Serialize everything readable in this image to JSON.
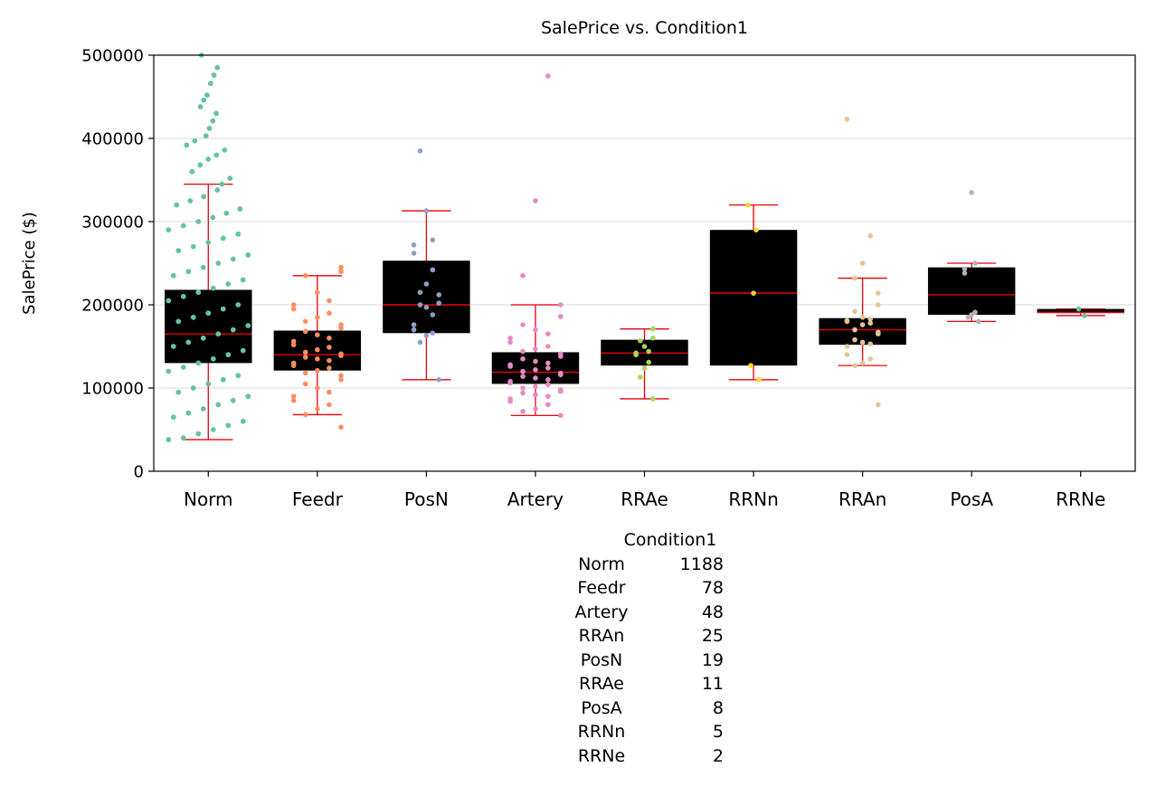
{
  "chart_data": {
    "type": "box",
    "title": "SalePrice vs. Condition1",
    "xlabel": "",
    "ylabel": "SalePrice ($)",
    "ylim": [
      0,
      500000
    ],
    "yticks": [
      0,
      100000,
      200000,
      300000,
      400000,
      500000
    ],
    "ytick_labels": [
      "0",
      "100000",
      "200000",
      "300000",
      "400000",
      "500000"
    ],
    "grid": "horizontal",
    "categories": [
      "Norm",
      "Feedr",
      "PosN",
      "Artery",
      "RRAe",
      "RRNn",
      "RRAn",
      "PosA",
      "RRNe"
    ],
    "boxes": [
      {
        "name": "Norm",
        "q1": 130000,
        "median": 165000,
        "q3": 218000,
        "whislo": 38000,
        "whishi": 345000
      },
      {
        "name": "Feedr",
        "q1": 121000,
        "median": 140000,
        "q3": 169000,
        "whislo": 68000,
        "whishi": 235000
      },
      {
        "name": "PosN",
        "q1": 166000,
        "median": 200000,
        "q3": 253000,
        "whislo": 110000,
        "whishi": 313000
      },
      {
        "name": "Artery",
        "q1": 105000,
        "median": 119000,
        "q3": 143000,
        "whislo": 67000,
        "whishi": 200000
      },
      {
        "name": "RRAe",
        "q1": 127000,
        "median": 142000,
        "q3": 158000,
        "whislo": 87000,
        "whishi": 171000
      },
      {
        "name": "RRNn",
        "q1": 127000,
        "median": 214000,
        "q3": 290000,
        "whislo": 110000,
        "whishi": 320000
      },
      {
        "name": "RRAn",
        "q1": 152000,
        "median": 170000,
        "q3": 184000,
        "whislo": 127000,
        "whishi": 232000
      },
      {
        "name": "PosA",
        "q1": 188000,
        "median": 212000,
        "q3": 245000,
        "whislo": 180000,
        "whishi": 250000
      },
      {
        "name": "RRNe",
        "q1": 190000,
        "median": 191000,
        "q3": 195000,
        "whislo": 187000,
        "whishi": 195000
      }
    ],
    "point_colors": [
      "#66c2a5",
      "#fc8d62",
      "#8da0cb",
      "#e78ac3",
      "#a6d854",
      "#ffd92f",
      "#e5c494",
      "#b3b3b3",
      "#66c2a5"
    ],
    "points": [
      {
        "name": "Norm",
        "count": 1188,
        "values": [
          500000,
          485000,
          476000,
          466000,
          452000,
          446000,
          438000,
          430000,
          421000,
          412000,
          403000,
          397000,
          392000,
          386000,
          380000,
          375000,
          368000,
          360000,
          352000,
          345000,
          338000,
          330000,
          325000,
          320000,
          315000,
          310000,
          305000,
          300000,
          295000,
          290000,
          285000,
          280000,
          275000,
          270000,
          265000,
          260000,
          255000,
          250000,
          245000,
          240000,
          235000,
          230000,
          225000,
          220000,
          215000,
          210000,
          205000,
          200000,
          195000,
          190000,
          185000,
          180000,
          175000,
          170000,
          165000,
          160000,
          155000,
          150000,
          145000,
          140000,
          135000,
          130000,
          125000,
          120000,
          115000,
          110000,
          105000,
          100000,
          95000,
          90000,
          85000,
          80000,
          75000,
          70000,
          65000,
          60000,
          55000,
          50000,
          45000,
          40000,
          38000
        ]
      },
      {
        "name": "Feedr",
        "count": 78,
        "values": [
          245000,
          240000,
          235000,
          215000,
          205000,
          200000,
          195000,
          190000,
          185000,
          180000,
          176000,
          172000,
          168000,
          164000,
          160000,
          156000,
          152000,
          149000,
          146000,
          143000,
          141000,
          139000,
          137000,
          135000,
          133000,
          130000,
          127000,
          124000,
          121000,
          118000,
          115000,
          110000,
          105000,
          100000,
          95000,
          90000,
          85000,
          80000,
          75000,
          68000,
          53000
        ]
      },
      {
        "name": "PosN",
        "count": 19,
        "values": [
          385000,
          313000,
          278000,
          272000,
          262000,
          242000,
          225000,
          215000,
          212000,
          202000,
          200000,
          197000,
          188000,
          176000,
          170000,
          166000,
          163000,
          155000,
          110000
        ]
      },
      {
        "name": "Artery",
        "count": 48,
        "values": [
          475000,
          325000,
          235000,
          200000,
          186000,
          176000,
          170000,
          165000,
          160000,
          155000,
          150000,
          147000,
          144000,
          141000,
          138000,
          135000,
          132000,
          130000,
          128000,
          126000,
          124000,
          122000,
          120000,
          118000,
          116000,
          114000,
          112000,
          110000,
          108000,
          106000,
          104000,
          102000,
          100000,
          98000,
          96000,
          94000,
          92000,
          90000,
          87000,
          84000,
          80000,
          75000,
          72000,
          67000
        ]
      },
      {
        "name": "RRAe",
        "count": 11,
        "values": [
          171000,
          160000,
          157000,
          150000,
          144000,
          142000,
          140000,
          131000,
          124000,
          113000,
          87000
        ]
      },
      {
        "name": "RRNn",
        "count": 5,
        "values": [
          320000,
          290000,
          214000,
          127000,
          110000
        ]
      },
      {
        "name": "RRAn",
        "count": 25,
        "values": [
          423000,
          283000,
          250000,
          232000,
          214000,
          200000,
          192000,
          185000,
          183000,
          181000,
          180000,
          178000,
          176000,
          170000,
          167000,
          165000,
          158000,
          155000,
          153000,
          150000,
          140000,
          135000,
          130000,
          127000,
          80000
        ]
      },
      {
        "name": "PosA",
        "count": 8,
        "values": [
          335000,
          250000,
          243000,
          238000,
          191000,
          188000,
          185000,
          180000
        ]
      },
      {
        "name": "RRNe",
        "count": 2,
        "values": [
          195000,
          187000
        ]
      }
    ]
  },
  "counts_table": {
    "header": "Condition1",
    "rows": [
      {
        "label": "Norm",
        "value": "1188"
      },
      {
        "label": "Feedr",
        "value": "78"
      },
      {
        "label": "Artery",
        "value": "48"
      },
      {
        "label": "RRAn",
        "value": "25"
      },
      {
        "label": "PosN",
        "value": "19"
      },
      {
        "label": "RRAe",
        "value": "11"
      },
      {
        "label": "PosA",
        "value": "8"
      },
      {
        "label": "RRNn",
        "value": "5"
      },
      {
        "label": "RRNe",
        "value": "2"
      }
    ]
  }
}
